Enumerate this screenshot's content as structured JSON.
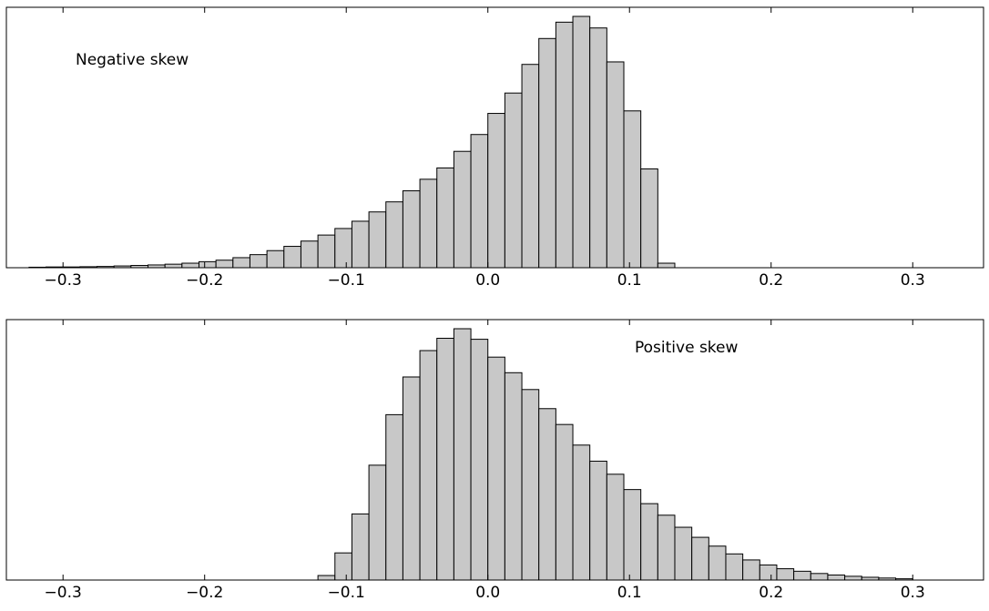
{
  "chart_data": [
    {
      "type": "bar",
      "annotation": "Negative skew",
      "title": "",
      "xlabel": "",
      "ylabel": "",
      "xlim": [
        -0.34,
        0.35
      ],
      "ylim": [
        0,
        1.0
      ],
      "x_ticks": [
        -0.3,
        -0.2,
        -0.1,
        0.0,
        0.1,
        0.2,
        0.3
      ],
      "x_tick_labels": [
        "−0.3",
        "−0.2",
        "−0.1",
        "0.0",
        "0.1",
        "0.2",
        "0.3"
      ],
      "y_ticks_visible": false,
      "grid": false,
      "bin_width": 0.012,
      "bin_centers": [
        -0.318,
        -0.306,
        -0.294,
        -0.282,
        -0.27,
        -0.258,
        -0.246,
        -0.234,
        -0.222,
        -0.21,
        -0.198,
        -0.186,
        -0.174,
        -0.162,
        -0.15,
        -0.138,
        -0.126,
        -0.114,
        -0.102,
        -0.09,
        -0.078,
        -0.066,
        -0.054,
        -0.042,
        -0.03,
        -0.018,
        -0.006,
        0.006,
        0.018,
        0.03,
        0.042,
        0.054,
        0.066,
        0.078,
        0.09,
        0.102,
        0.114,
        0.126
      ],
      "values": [
        0.002,
        0.003,
        0.003,
        0.004,
        0.005,
        0.007,
        0.009,
        0.011,
        0.014,
        0.018,
        0.024,
        0.03,
        0.04,
        0.052,
        0.068,
        0.085,
        0.106,
        0.13,
        0.156,
        0.185,
        0.222,
        0.262,
        0.306,
        0.352,
        0.397,
        0.463,
        0.53,
        0.614,
        0.695,
        0.809,
        0.912,
        0.977,
        1.0,
        0.954,
        0.819,
        0.624,
        0.393,
        0.018
      ]
    },
    {
      "type": "bar",
      "annotation": "Positive skew",
      "title": "",
      "xlabel": "",
      "ylabel": "",
      "xlim": [
        -0.34,
        0.35
      ],
      "ylim": [
        0,
        1.0
      ],
      "x_ticks": [
        -0.3,
        -0.2,
        -0.1,
        0.0,
        0.1,
        0.2,
        0.3
      ],
      "x_tick_labels": [
        "−0.3",
        "−0.2",
        "−0.1",
        "0.0",
        "0.1",
        "0.2",
        "0.3"
      ],
      "y_ticks_visible": false,
      "grid": false,
      "bin_width": 0.012,
      "bin_centers": [
        -0.114,
        -0.102,
        -0.09,
        -0.078,
        -0.066,
        -0.054,
        -0.042,
        -0.03,
        -0.018,
        -0.006,
        0.006,
        0.018,
        0.03,
        0.042,
        0.054,
        0.066,
        0.078,
        0.09,
        0.102,
        0.114,
        0.126,
        0.138,
        0.15,
        0.162,
        0.174,
        0.186,
        0.198,
        0.21,
        0.222,
        0.234,
        0.246,
        0.258,
        0.27,
        0.282,
        0.294
      ],
      "values": [
        0.018,
        0.108,
        0.263,
        0.457,
        0.658,
        0.808,
        0.913,
        0.962,
        1.0,
        0.958,
        0.887,
        0.825,
        0.758,
        0.682,
        0.619,
        0.537,
        0.473,
        0.421,
        0.36,
        0.304,
        0.258,
        0.21,
        0.17,
        0.135,
        0.104,
        0.08,
        0.06,
        0.045,
        0.035,
        0.026,
        0.02,
        0.015,
        0.011,
        0.008,
        0.005
      ]
    }
  ]
}
